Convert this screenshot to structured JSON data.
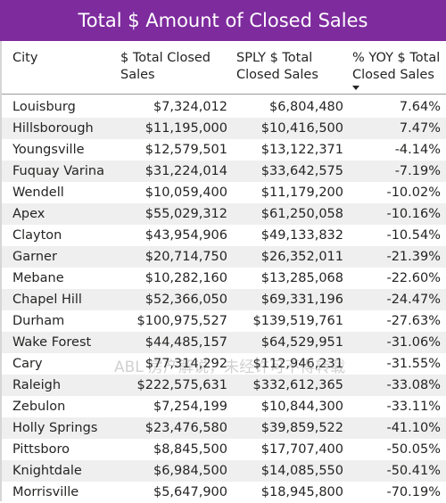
{
  "title": "Total $ Amount of Closed Sales",
  "table": {
    "headers": {
      "city": "City",
      "total": "$ Total Closed Sales",
      "sply": "SPLY $ Total Closed Sales",
      "yoy": "% YOY $ Total Closed Sales"
    },
    "sort": {
      "column": "yoy",
      "direction": "descending"
    },
    "rows": [
      {
        "city": "Louisburg",
        "total": "$7,324,012",
        "sply": "$6,804,480",
        "yoy": "7.64%"
      },
      {
        "city": "Hillsborough",
        "total": "$11,195,000",
        "sply": "$10,416,500",
        "yoy": "7.47%"
      },
      {
        "city": "Youngsville",
        "total": "$12,579,501",
        "sply": "$13,122,371",
        "yoy": "-4.14%"
      },
      {
        "city": "Fuquay Varina",
        "total": "$31,224,014",
        "sply": "$33,642,575",
        "yoy": "-7.19%"
      },
      {
        "city": "Wendell",
        "total": "$10,059,400",
        "sply": "$11,179,200",
        "yoy": "-10.02%"
      },
      {
        "city": "Apex",
        "total": "$55,029,312",
        "sply": "$61,250,058",
        "yoy": "-10.16%"
      },
      {
        "city": "Clayton",
        "total": "$43,954,906",
        "sply": "$49,133,832",
        "yoy": "-10.54%"
      },
      {
        "city": "Garner",
        "total": "$20,714,750",
        "sply": "$26,352,011",
        "yoy": "-21.39%"
      },
      {
        "city": "Mebane",
        "total": "$10,282,160",
        "sply": "$13,285,068",
        "yoy": "-22.60%"
      },
      {
        "city": "Chapel Hill",
        "total": "$52,366,050",
        "sply": "$69,331,196",
        "yoy": "-24.47%"
      },
      {
        "city": "Durham",
        "total": "$100,975,527",
        "sply": "$139,519,761",
        "yoy": "-27.63%"
      },
      {
        "city": "Wake Forest",
        "total": "$44,485,157",
        "sply": "$64,529,951",
        "yoy": "-31.06%"
      },
      {
        "city": "Cary",
        "total": "$77,314,292",
        "sply": "$112,946,231",
        "yoy": "-31.55%"
      },
      {
        "city": "Raleigh",
        "total": "$222,575,631",
        "sply": "$332,612,365",
        "yoy": "-33.08%"
      },
      {
        "city": "Zebulon",
        "total": "$7,254,199",
        "sply": "$10,844,300",
        "yoy": "-33.11%"
      },
      {
        "city": "Holly Springs",
        "total": "$23,476,580",
        "sply": "$39,859,522",
        "yoy": "-41.10%"
      },
      {
        "city": "Pittsboro",
        "total": "$8,845,500",
        "sply": "$17,707,400",
        "yoy": "-50.05%"
      },
      {
        "city": "Knightdale",
        "total": "$6,984,500",
        "sply": "$14,085,550",
        "yoy": "-50.41%"
      },
      {
        "city": "Morrisville",
        "total": "$5,647,900",
        "sply": "$18,945,800",
        "yoy": "-70.19%"
      }
    ]
  },
  "watermark": "ABL 房产解说，未经许可不得转载",
  "colors": {
    "title_bg": "#7e2b9e",
    "title_text": "#ffffff",
    "stripe": "#efefef",
    "text": "#252423"
  }
}
